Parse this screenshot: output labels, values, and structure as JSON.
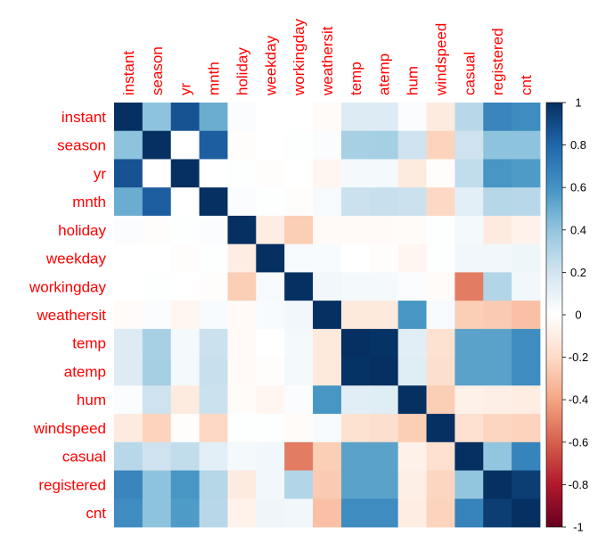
{
  "chart_data": {
    "type": "heatmap",
    "variables": [
      "instant",
      "season",
      "yr",
      "mnth",
      "holiday",
      "weekday",
      "workingday",
      "weathersit",
      "temp",
      "atemp",
      "hum",
      "windspeed",
      "casual",
      "registered",
      "cnt"
    ],
    "matrix": [
      [
        1.0,
        0.41,
        0.87,
        0.5,
        0.02,
        0.0,
        -0.0,
        -0.02,
        0.15,
        0.15,
        0.02,
        -0.11,
        0.28,
        0.66,
        0.63
      ],
      [
        0.41,
        1.0,
        0.0,
        0.83,
        -0.01,
        -0.0,
        0.01,
        0.02,
        0.33,
        0.34,
        0.21,
        -0.23,
        0.21,
        0.41,
        0.41
      ],
      [
        0.87,
        0.0,
        1.0,
        -0.0,
        0.01,
        -0.01,
        -0.0,
        -0.05,
        0.05,
        0.05,
        -0.11,
        -0.01,
        0.25,
        0.59,
        0.57
      ],
      [
        0.5,
        0.83,
        -0.0,
        1.0,
        0.02,
        0.01,
        -0.01,
        0.04,
        0.22,
        0.23,
        0.22,
        -0.21,
        0.12,
        0.29,
        0.28
      ],
      [
        0.02,
        -0.01,
        0.01,
        0.02,
        1.0,
        -0.1,
        -0.25,
        -0.03,
        -0.03,
        -0.03,
        -0.02,
        0.01,
        0.05,
        -0.11,
        -0.07
      ],
      [
        0.0,
        -0.0,
        -0.01,
        0.01,
        -0.1,
        1.0,
        0.04,
        0.03,
        -0.0,
        -0.01,
        -0.05,
        0.01,
        0.06,
        0.06,
        0.07
      ],
      [
        -0.0,
        0.01,
        -0.0,
        -0.01,
        -0.25,
        0.04,
        1.0,
        0.06,
        0.05,
        0.05,
        0.02,
        -0.02,
        -0.52,
        0.3,
        0.06
      ],
      [
        -0.02,
        0.02,
        -0.05,
        0.04,
        -0.03,
        0.03,
        0.06,
        1.0,
        -0.12,
        -0.12,
        0.59,
        0.04,
        -0.25,
        -0.26,
        -0.3
      ],
      [
        0.15,
        0.33,
        0.05,
        0.22,
        -0.03,
        -0.0,
        0.05,
        -0.12,
        1.0,
        0.99,
        0.13,
        -0.16,
        0.54,
        0.54,
        0.63
      ],
      [
        0.15,
        0.34,
        0.05,
        0.23,
        -0.03,
        -0.01,
        0.05,
        -0.12,
        0.99,
        1.0,
        0.14,
        -0.18,
        0.54,
        0.54,
        0.63
      ],
      [
        0.02,
        0.21,
        -0.11,
        0.22,
        -0.02,
        -0.05,
        0.02,
        0.59,
        0.13,
        0.14,
        1.0,
        -0.25,
        -0.08,
        -0.09,
        -0.1
      ],
      [
        -0.11,
        -0.23,
        -0.01,
        -0.21,
        0.01,
        0.01,
        -0.02,
        0.04,
        -0.16,
        -0.18,
        -0.25,
        1.0,
        -0.17,
        -0.22,
        -0.23
      ],
      [
        0.28,
        0.21,
        0.25,
        0.12,
        0.05,
        0.06,
        -0.52,
        -0.25,
        0.54,
        0.54,
        -0.08,
        -0.17,
        1.0,
        0.4,
        0.67
      ],
      [
        0.66,
        0.41,
        0.59,
        0.29,
        -0.11,
        0.06,
        0.3,
        -0.26,
        0.54,
        0.54,
        -0.09,
        -0.22,
        0.4,
        1.0,
        0.95
      ],
      [
        0.63,
        0.41,
        0.57,
        0.28,
        -0.07,
        0.07,
        0.06,
        -0.3,
        0.63,
        0.63,
        -0.1,
        -0.23,
        0.67,
        0.95,
        1.0
      ]
    ],
    "color_range": [
      -1,
      1
    ],
    "colorbar_ticks": [
      "1",
      "0.8",
      "0.6",
      "0.4",
      "0.2",
      "0",
      "-0.2",
      "-0.4",
      "-0.6",
      "-0.8",
      "-1"
    ],
    "colorbar_values": [
      1,
      0.8,
      0.6,
      0.4,
      0.2,
      0,
      -0.2,
      -0.4,
      -0.6,
      -0.8,
      -1
    ],
    "palette": [
      "#67001F",
      "#B2182B",
      "#D6604D",
      "#F4A582",
      "#FDDBC7",
      "#FFFFFF",
      "#D1E5F0",
      "#92C5DE",
      "#4393C3",
      "#2166AC",
      "#053061"
    ],
    "label_color": "#FF0000",
    "legend_position": "right",
    "grid": false
  }
}
